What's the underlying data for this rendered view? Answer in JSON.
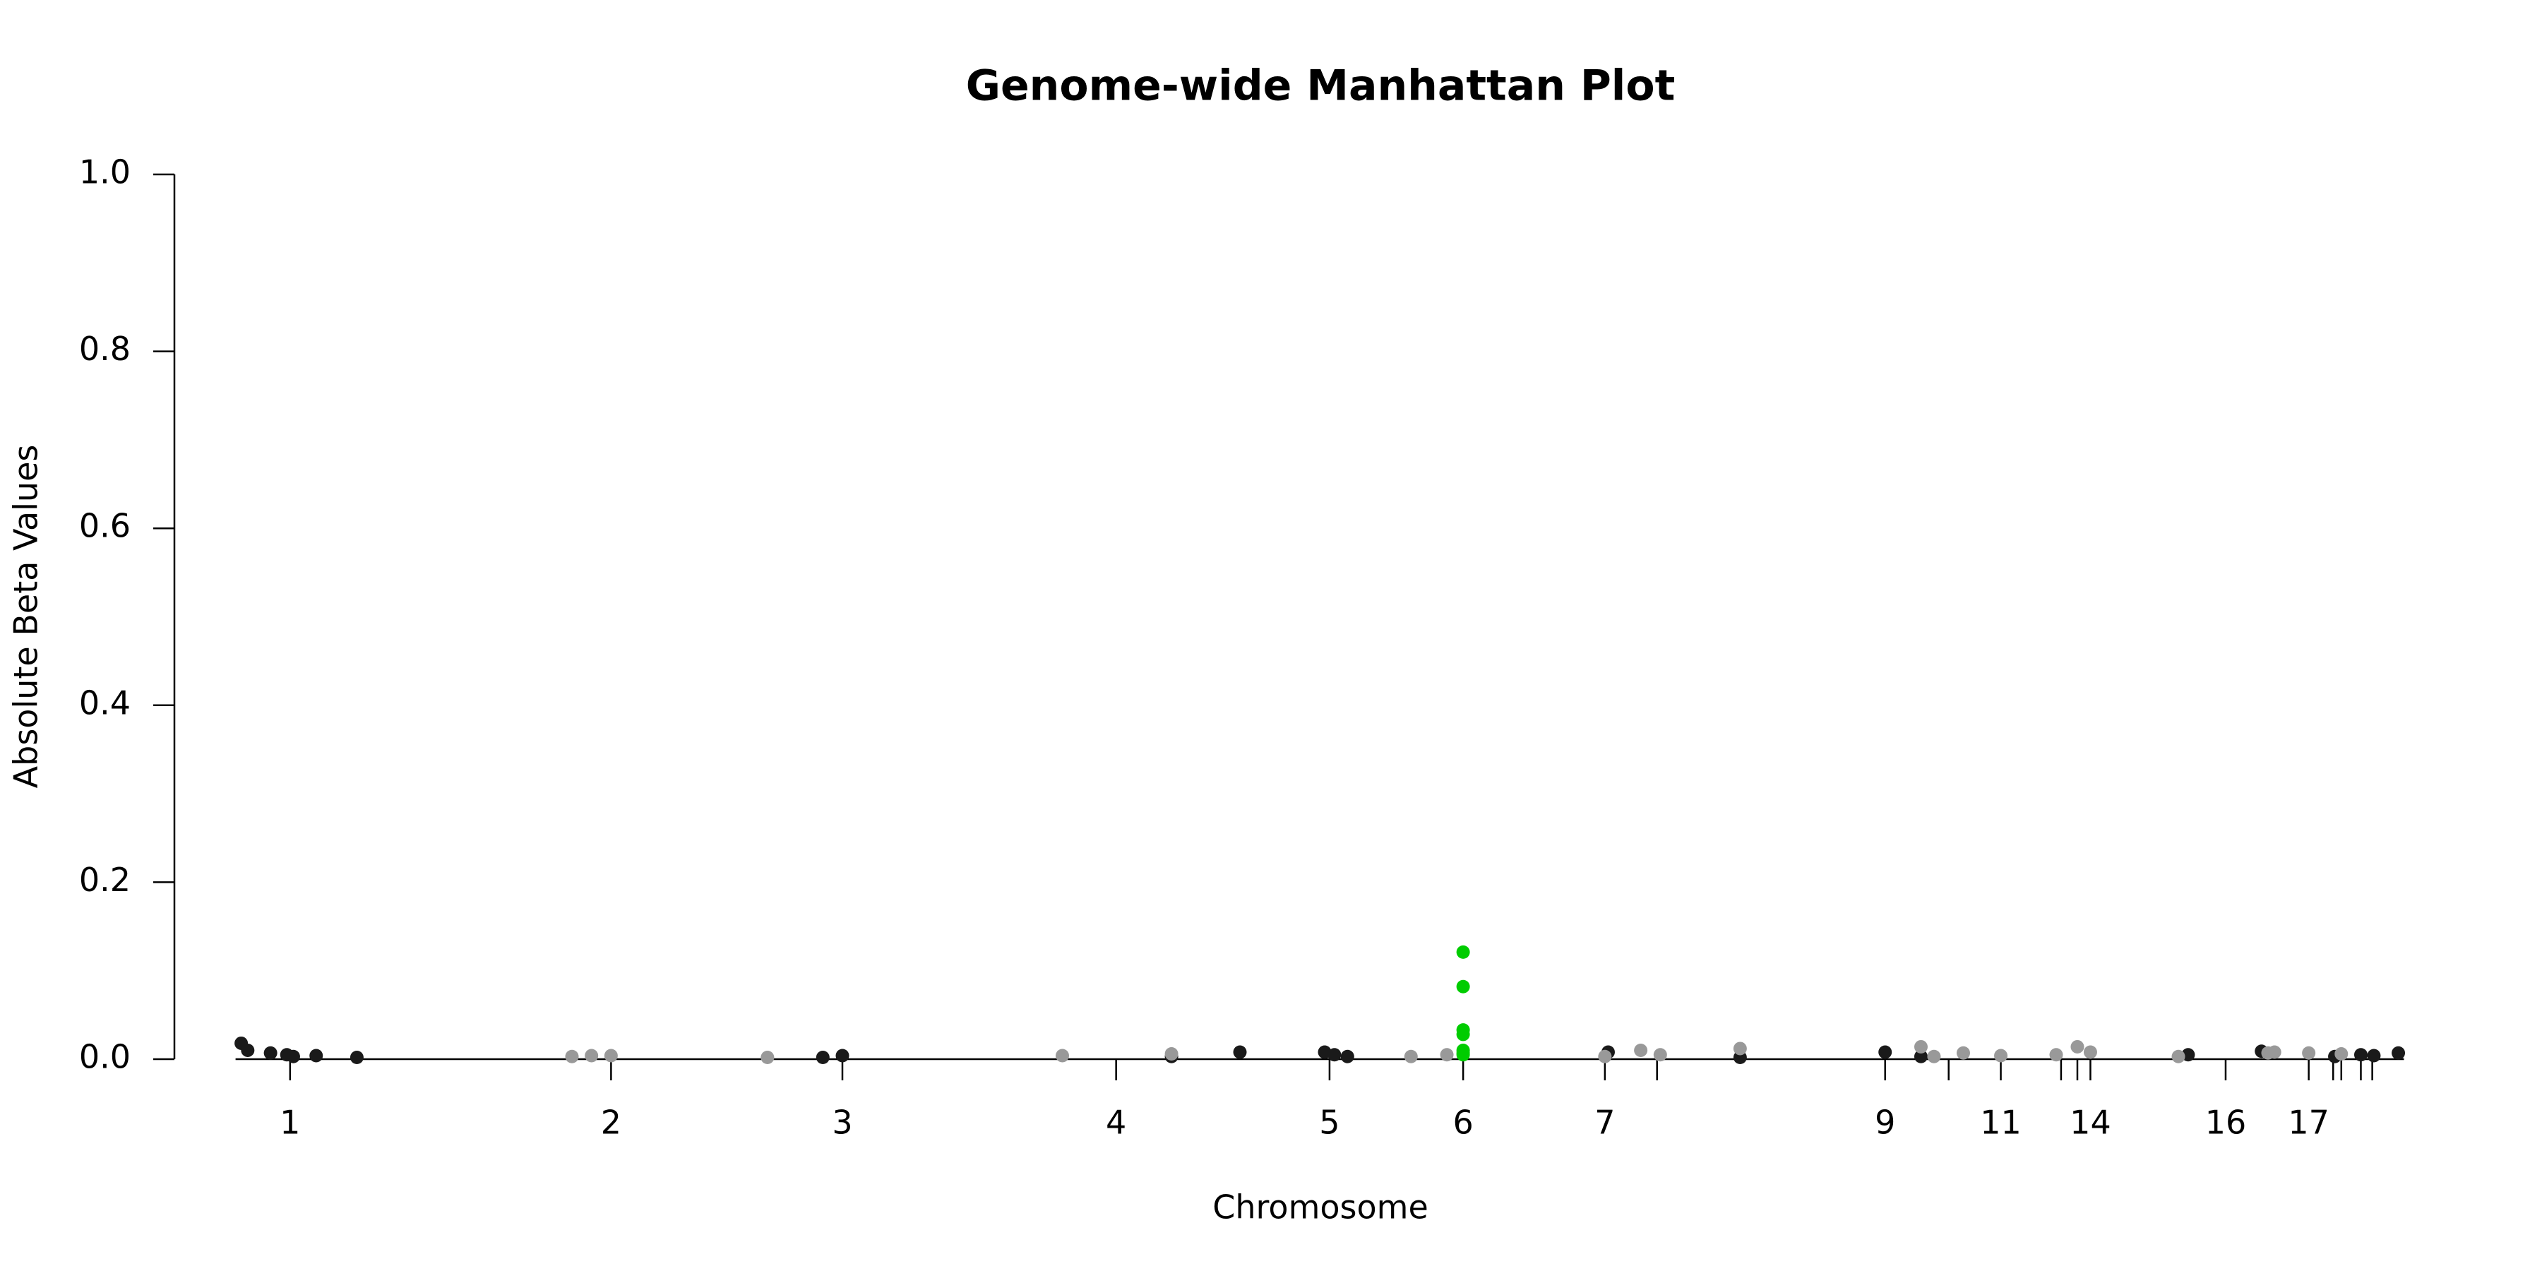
{
  "chart_data": {
    "type": "scatter",
    "title": "Genome-wide Manhattan Plot",
    "x_label": "Chromosome",
    "y_label": "Absolute Beta Values",
    "xlim": [
      7,
      1380
    ],
    "ylim": [
      0,
      1
    ],
    "yticks": [
      {
        "value": 0,
        "label": "0.0"
      },
      {
        "value": 0.2,
        "label": "0.2"
      },
      {
        "value": 0.4,
        "label": "0.4"
      },
      {
        "value": 0.6,
        "label": "0.6"
      },
      {
        "value": 0.8,
        "label": "0.8"
      },
      {
        "value": 1,
        "label": "1.0"
      }
    ],
    "xticks": [
      {
        "value": 78,
        "label": "1"
      },
      {
        "value": 275,
        "label": "2"
      },
      {
        "value": 417,
        "label": "3"
      },
      {
        "value": 585,
        "label": "4"
      },
      {
        "value": 716,
        "label": "5"
      },
      {
        "value": 798,
        "label": "6"
      },
      {
        "value": 885,
        "label": "7"
      },
      {
        "value": 917,
        "label": null
      },
      {
        "value": 1057,
        "label": "9"
      },
      {
        "value": 1096,
        "label": null
      },
      {
        "value": 1128,
        "label": "11"
      },
      {
        "value": 1165,
        "label": null
      },
      {
        "value": 1175,
        "label": null
      },
      {
        "value": 1183,
        "label": "14"
      },
      {
        "value": 1266,
        "label": "16"
      },
      {
        "value": 1317,
        "label": "17"
      },
      {
        "value": 1332,
        "label": null
      },
      {
        "value": 1337,
        "label": null
      },
      {
        "value": 1349,
        "label": null
      },
      {
        "value": 1356,
        "label": null
      }
    ],
    "grid": false,
    "series": [
      {
        "color": "#1a1a1a",
        "x": [
          48,
          52,
          66,
          76,
          80,
          94,
          119,
          405,
          417,
          619,
          661,
          713,
          719,
          727,
          887,
          968,
          1057,
          1079,
          1243,
          1288,
          1333,
          1349,
          1357,
          1372
        ],
        "values": [
          0.018,
          0.01,
          0.007,
          0.005,
          0.003,
          0.004,
          0.002,
          0.002,
          0.004,
          0.003,
          0.008,
          0.008,
          0.005,
          0.003,
          0.008,
          0.002,
          0.008,
          0.003,
          0.005,
          0.009,
          0.003,
          0.005,
          0.004,
          0.007
        ]
      },
      {
        "color": "#999999",
        "x": [
          251,
          263,
          275,
          371,
          552,
          619,
          766,
          788,
          885,
          907,
          919,
          968,
          1079,
          1087,
          1105,
          1128,
          1162,
          1175,
          1183,
          1237,
          1292,
          1296,
          1317,
          1337
        ],
        "values": [
          0.003,
          0.004,
          0.004,
          0.002,
          0.004,
          0.006,
          0.003,
          0.005,
          0.003,
          0.01,
          0.005,
          0.012,
          0.014,
          0.003,
          0.007,
          0.004,
          0.005,
          0.014,
          0.008,
          0.003,
          0.007,
          0.008,
          0.007,
          0.006
        ]
      },
      {
        "color": "#00cc00",
        "x": [
          798,
          798,
          798,
          798,
          798,
          798,
          798
        ],
        "values": [
          0.121,
          0.082,
          0.033,
          0.028,
          0.01,
          0.007,
          0.005
        ]
      }
    ]
  }
}
